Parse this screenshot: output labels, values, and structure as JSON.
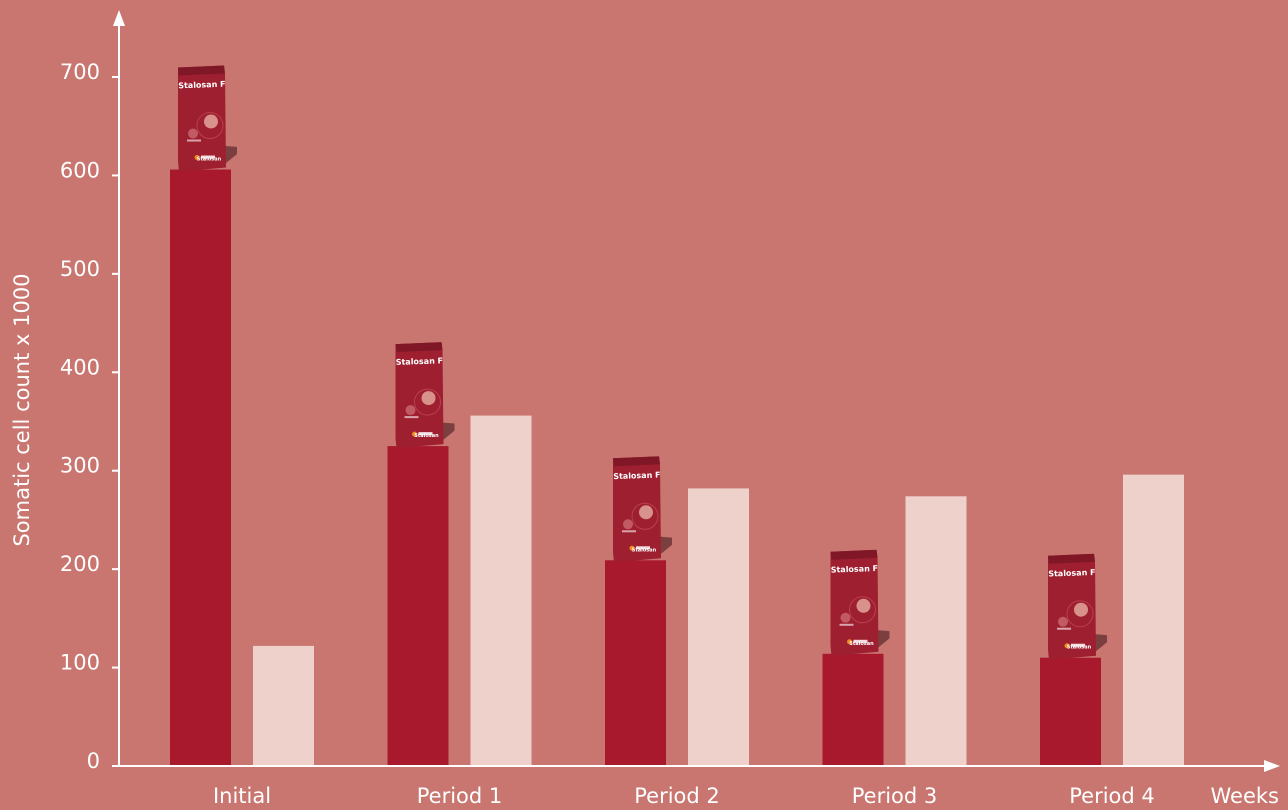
{
  "chart_data": {
    "type": "bar",
    "title": "",
    "ylabel": "Somatic cell count x 1000",
    "xlabel": "Weeks",
    "categories": [
      "Initial",
      "Period 1",
      "Period 2",
      "Period 3",
      "Period 4"
    ],
    "series": [
      {
        "values": [
          606,
          325,
          209,
          114,
          110
        ],
        "color": "#a8192e"
      },
      {
        "values": [
          122,
          356,
          282,
          274,
          296
        ],
        "color": "#efd1cc"
      }
    ],
    "ylim": [
      0,
      700
    ],
    "yticks": [
      0,
      100,
      200,
      300,
      400,
      500,
      600,
      700
    ],
    "grid": false,
    "legend": "none",
    "marker_image": {
      "brand_text": "Stalosan F",
      "logo_text": "Stalosan",
      "icon": "product-bag-icon"
    }
  },
  "colors": {
    "background": "#c97670",
    "axis": "#ffffff",
    "bag": "#9e1f30"
  }
}
